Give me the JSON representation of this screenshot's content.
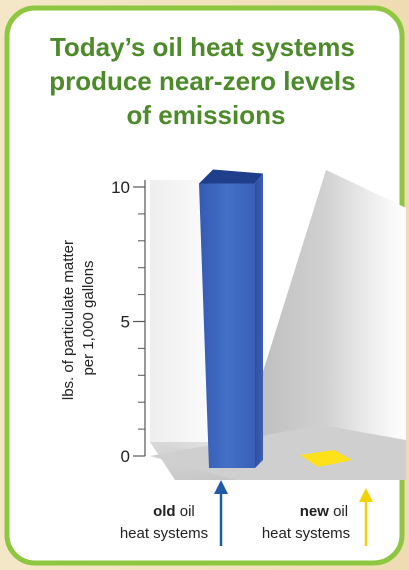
{
  "title_lines": [
    "Today’s oil heat systems",
    "produce near-zero levels",
    "of emissions"
  ],
  "colors": {
    "frame": "#8dc63f",
    "title": "#4c8a2a",
    "old_bar": "#3f66bf",
    "new_bar": "#ffe11a",
    "old_arrow": "#1f5aa8",
    "new_arrow": "#f2d200"
  },
  "chart_data": {
    "type": "bar",
    "categories": [
      "old oil heat systems",
      "new oil heat systems"
    ],
    "values": [
      10.5,
      0.1
    ],
    "ylabel_lines": [
      "lbs. of particulate matter",
      "per 1,000 gallons"
    ],
    "ylim": [
      0,
      10
    ],
    "yticks": [
      0,
      5,
      10
    ],
    "grid": false
  },
  "labels": {
    "old": {
      "bold": "old",
      "rest": " oil",
      "line2": "heat systems"
    },
    "new": {
      "bold": "new",
      "rest": " oil",
      "line2": "heat systems"
    }
  }
}
